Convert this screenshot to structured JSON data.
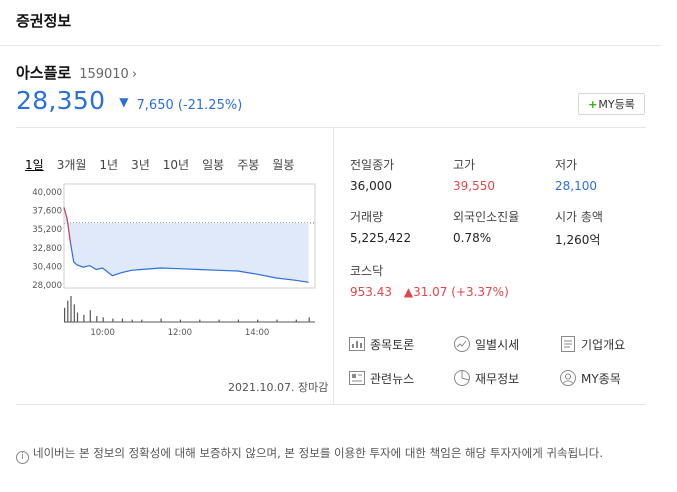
{
  "header": {
    "title": "증권정보"
  },
  "stock": {
    "name": "아스플로",
    "code": "159010",
    "chevron": "›",
    "price": "28,350",
    "change": "7,650 (-21.25%)",
    "direction_symbol": "▼"
  },
  "my_button": {
    "plus": "+",
    "label": "MY등록"
  },
  "period_tabs": [
    "1일",
    "3개월",
    "1년",
    "3년",
    "10년",
    "일봉",
    "주봉",
    "월봉"
  ],
  "chart_data": {
    "type": "line",
    "y_ticks": [
      "40,000",
      "37,600",
      "35,200",
      "32,800",
      "30,400",
      "28,000"
    ],
    "x_ticks": [
      "10:00",
      "12:00",
      "14:00"
    ],
    "ylim": [
      28000,
      40000
    ],
    "previous_close": 36000,
    "series": [
      {
        "x": [
          "09:00",
          "09:05",
          "09:10",
          "09:15",
          "09:20",
          "09:30",
          "09:40",
          "09:50",
          "10:00",
          "10:15",
          "10:30",
          "10:45",
          "11:00",
          "11:30",
          "12:00",
          "12:30",
          "13:00",
          "13:30",
          "14:00",
          "14:30",
          "15:00",
          "15:20"
        ],
        "values": [
          38000,
          36500,
          33500,
          31000,
          30600,
          30300,
          30500,
          30000,
          30200,
          29200,
          29600,
          29900,
          30000,
          30200,
          30100,
          30000,
          29900,
          29800,
          29400,
          28900,
          28600,
          28350
        ]
      }
    ],
    "volume": [
      12,
      18,
      22,
      15,
      8,
      6,
      10,
      5,
      4,
      3,
      3,
      2,
      2,
      3,
      2,
      2,
      2,
      2,
      2,
      2,
      2,
      4
    ]
  },
  "chart_date": "2021.10.07. 장마감",
  "stats": [
    {
      "label": "전일종가",
      "value": "36,000",
      "tone": "normal"
    },
    {
      "label": "고가",
      "value": "39,550",
      "tone": "up"
    },
    {
      "label": "저가",
      "value": "28,100",
      "tone": "down"
    },
    {
      "label": "거래량",
      "value": "5,225,422",
      "tone": "normal"
    },
    {
      "label": "외국인소진율",
      "value": "0.78%",
      "tone": "normal"
    },
    {
      "label": "시가 총액",
      "value": "1,260억",
      "tone": "normal"
    }
  ],
  "index": {
    "label": "코스닥",
    "value": "953.43",
    "symbol": "▲",
    "change": "31.07 (+3.37%)"
  },
  "links": [
    {
      "label": "종목토론",
      "icon": "chat-icon"
    },
    {
      "label": "일별시세",
      "icon": "trend-icon"
    },
    {
      "label": "기업개요",
      "icon": "document-icon"
    },
    {
      "label": "관련뉴스",
      "icon": "news-icon"
    },
    {
      "label": "재무정보",
      "icon": "pie-chart-icon"
    },
    {
      "label": "MY종목",
      "icon": "person-icon"
    }
  ],
  "colors": {
    "accent_blue": "#2a6fdb",
    "up_red": "#e3454b",
    "brand_green": "#2db400"
  },
  "disclaimer": "네이버는 본 정보의 정확성에 대해 보증하지 않으며, 본 정보를 이용한 투자에 대한 책임은 해당 투자자에게 귀속됩니다."
}
